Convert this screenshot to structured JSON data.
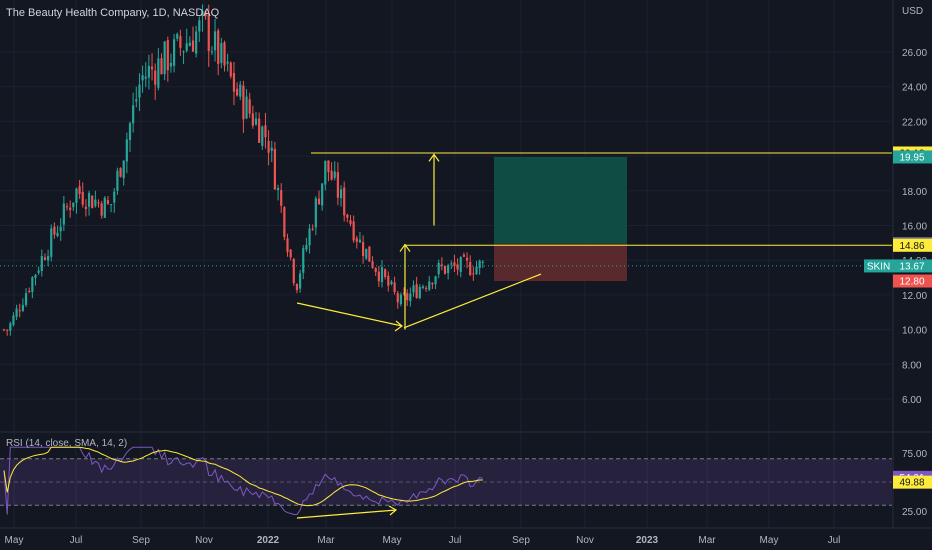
{
  "chart_data": {
    "type": "candlestick",
    "title": "The Beauty Health Company, 1D, NASDAQ",
    "currency": "USD",
    "price_axis": {
      "ticks": [
        "6.00",
        "8.00",
        "10.00",
        "12.00",
        "14.00",
        "16.00",
        "18.00",
        "20.00",
        "22.00",
        "24.00",
        "26.00"
      ],
      "tick_values": [
        6,
        8,
        10,
        12,
        14,
        16,
        18,
        20,
        22,
        24,
        26
      ],
      "range": [
        4.3,
        28.3
      ]
    },
    "time_axis": {
      "labels": [
        "May",
        "Jul",
        "Sep",
        "Nov",
        "2022",
        "Mar",
        "May",
        "Jul",
        "Sep",
        "Nov",
        "2023",
        "Mar",
        "May",
        "Jul"
      ],
      "bold": [
        "2022",
        "2023"
      ]
    },
    "ohlc_key_points": [
      {
        "date": "2021-05",
        "price": 10.0
      },
      {
        "date": "2021-06",
        "price": 14.5
      },
      {
        "date": "2021-07",
        "price": 18.0
      },
      {
        "date": "2021-08",
        "price": 17.0
      },
      {
        "date": "2021-09",
        "price": 24.5
      },
      {
        "date": "2021-10",
        "price": 26.0
      },
      {
        "date": "2021-11",
        "price": 27.5
      },
      {
        "date": "2021-12",
        "price": 23.5
      },
      {
        "date": "2022-01",
        "price": 21.0
      },
      {
        "date": "2022-02",
        "price": 12.5
      },
      {
        "date": "2022-03",
        "price": 19.5
      },
      {
        "date": "2022-04",
        "price": 15.0
      },
      {
        "date": "2022-05",
        "price": 11.5
      },
      {
        "date": "2022-06",
        "price": 13.5
      },
      {
        "date": "2022-07",
        "price": 13.7
      }
    ],
    "price_labels": [
      {
        "text": "20.18",
        "value": 20.18,
        "bg": "#ffeb3b",
        "fg": "#131722"
      },
      {
        "text": "19.95",
        "value": 19.95,
        "bg": "#26a69a",
        "fg": "#ffffff"
      },
      {
        "text": "14.95",
        "value": 14.95,
        "bg": "#787b86",
        "fg": "#ffffff"
      },
      {
        "text": "14.86",
        "value": 14.86,
        "bg": "#ffeb3b",
        "fg": "#131722"
      },
      {
        "text": "13.67",
        "value": 13.67,
        "bg": "#26a69a",
        "fg": "#ffffff"
      },
      {
        "text": "12.80",
        "value": 12.8,
        "bg": "#ef5350",
        "fg": "#ffffff"
      }
    ],
    "symbol_badge": "SKIN",
    "target_price": 19.95,
    "entry_price": 14.95,
    "stop_price": 12.8,
    "horizontal_lines": [
      20.18,
      14.86
    ],
    "last_price": 13.67,
    "rsi": {
      "label": "RSI (14, close, SMA, 14, 2)",
      "ticks": [
        "75.00",
        "50.00",
        "25.00"
      ],
      "tick_values": [
        75,
        50,
        25
      ],
      "upper_band": 70,
      "lower_band": 30,
      "value_label": "54.01",
      "sma_label": "49.88",
      "value": 54.01,
      "sma": 49.88
    },
    "colors": {
      "up": "#26a69a",
      "down": "#ef5350",
      "annotation": "#ffeb3b",
      "rsi_line": "#7e57c2",
      "rsi_sma": "#ffeb3b",
      "profit_zone": "#0f4f47",
      "loss_zone": "#5e2a2e"
    }
  }
}
